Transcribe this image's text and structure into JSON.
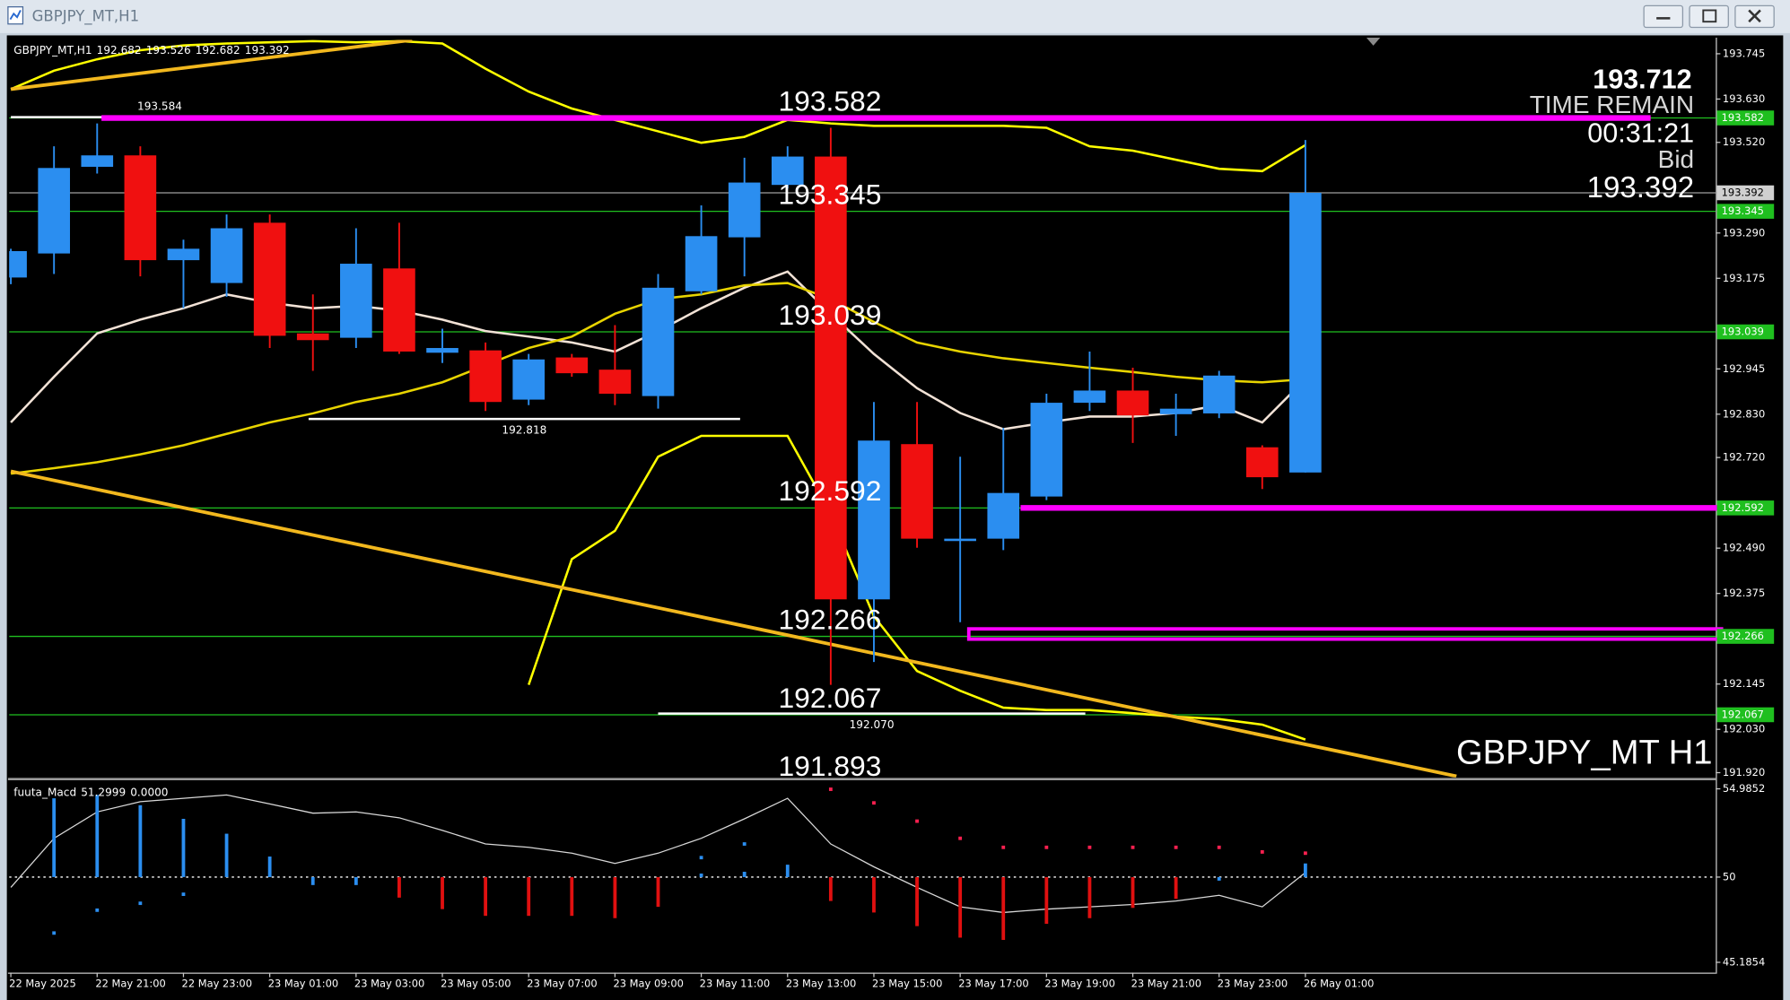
{
  "window": {
    "title": "GBPJPY_MT,H1"
  },
  "chart_data": [
    {
      "type": "candlestick",
      "symbol": "GBPJPY_MT,H1",
      "watermark": "GBPJPY_MT H1",
      "categories": [
        "22 May 2025",
        null,
        "22 May 21:00",
        null,
        "22 May 23:00",
        null,
        "23 May 01:00",
        null,
        "23 May 03:00",
        null,
        "23 May 05:00",
        null,
        "23 May 07:00",
        null,
        "23 May 09:00",
        null,
        "23 May 11:00",
        null,
        "23 May 13:00",
        null,
        "23 May 15:00",
        null,
        "23 May 17:00",
        null,
        "23 May 19:00",
        null,
        "23 May 21:00",
        null,
        "23 May 23:00",
        null,
        "26 May 01:00"
      ],
      "open": [
        193.177,
        193.238,
        193.458,
        193.487,
        193.221,
        193.163,
        193.316,
        193.035,
        193.024,
        193.2,
        192.986,
        192.992,
        192.867,
        192.974,
        192.943,
        192.876,
        193.142,
        193.279,
        193.412,
        193.484,
        192.36,
        192.754,
        192.508,
        192.514,
        192.621,
        192.859,
        192.89,
        192.83,
        192.832,
        192.746,
        192.682
      ],
      "high": [
        193.25,
        193.51,
        193.568,
        193.51,
        193.273,
        193.337,
        193.337,
        193.134,
        193.302,
        193.316,
        193.047,
        193.012,
        192.983,
        192.983,
        193.056,
        193.186,
        193.36,
        193.481,
        193.51,
        193.557,
        192.861,
        192.861,
        192.722,
        192.795,
        192.882,
        192.989,
        192.948,
        192.882,
        192.94,
        192.751,
        193.526
      ],
      "low": [
        193.16,
        193.186,
        193.441,
        193.18,
        193.099,
        193.128,
        192.998,
        192.94,
        192.998,
        192.983,
        192.96,
        192.838,
        192.853,
        192.925,
        192.853,
        192.844,
        193.134,
        193.18,
        193.403,
        192.143,
        192.201,
        192.491,
        192.302,
        192.485,
        192.612,
        192.838,
        192.757,
        192.775,
        192.82,
        192.64,
        192.682
      ],
      "close": [
        193.244,
        193.455,
        193.487,
        193.221,
        193.25,
        193.302,
        193.029,
        193.018,
        193.212,
        192.989,
        192.998,
        192.861,
        192.969,
        192.934,
        192.882,
        193.151,
        193.282,
        193.418,
        193.484,
        192.36,
        192.763,
        192.514,
        192.514,
        192.63,
        192.859,
        192.89,
        192.827,
        192.844,
        192.928,
        192.67,
        193.392
      ],
      "up_color": "#2b8ef0",
      "down_color": "#f01010",
      "lines": [
        {
          "color": "#f2e2d6",
          "values": [
            192.809,
            192.925,
            193.035,
            193.07,
            193.099,
            193.134,
            193.113,
            193.099,
            193.105,
            193.093,
            193.07,
            193.041,
            193.027,
            193.012,
            192.989,
            193.041,
            193.099,
            193.151,
            193.192,
            193.085,
            192.983,
            192.896,
            192.833,
            192.792,
            192.809,
            192.824,
            192.824,
            192.833,
            192.853,
            192.809,
            192.919
          ]
        },
        {
          "color": "#e8d400",
          "values": [
            192.679,
            192.693,
            192.708,
            192.728,
            192.751,
            192.78,
            192.809,
            192.832,
            192.861,
            192.882,
            192.911,
            192.954,
            192.998,
            193.027,
            193.085,
            193.122,
            193.134,
            193.157,
            193.163,
            193.122,
            193.064,
            193.012,
            192.989,
            192.972,
            192.96,
            192.948,
            192.937,
            192.925,
            192.916,
            192.911,
            192.919
          ]
        },
        {
          "color": "#ffff00",
          "values": [
            193.655,
            193.702,
            193.731,
            193.754,
            193.766,
            193.771,
            193.774,
            193.777,
            193.774,
            193.777,
            193.771,
            193.707,
            193.649,
            193.606,
            193.577,
            193.548,
            193.519,
            193.534,
            193.577,
            193.568,
            193.562,
            193.562,
            193.562,
            193.562,
            193.557,
            193.51,
            193.499,
            193.476,
            193.453,
            193.447,
            193.513
          ]
        },
        {
          "color": "#ffff00",
          "values": [
            null,
            null,
            null,
            null,
            null,
            null,
            null,
            null,
            null,
            null,
            null,
            null,
            192.143,
            192.462,
            192.534,
            192.722,
            192.775,
            192.775,
            192.775,
            192.578,
            192.317,
            192.178,
            192.128,
            192.085,
            192.079,
            192.079,
            192.071,
            192.062,
            192.056,
            192.042,
            192.004
          ]
        }
      ],
      "trendlines": [
        {
          "color": "#f2b81e",
          "start": [
            0,
            192.685
          ],
          "end": [
            33.5,
            191.911
          ]
        },
        {
          "color": "#f2b81e",
          "start": [
            0,
            193.655
          ],
          "end": [
            9.3,
            193.78
          ]
        }
      ],
      "levels": [
        193.582,
        193.345,
        193.039,
        192.592,
        192.266,
        192.067,
        191.893
      ],
      "level_color": "#1fbf1f",
      "zones": [
        {
          "value": 193.582,
          "start": 2.1,
          "end": 38
        },
        {
          "value": 192.592,
          "start": 23.4
        },
        {
          "low": 192.259,
          "high": 192.285,
          "start": 22.2
        }
      ],
      "zone_color": "#ff00ff",
      "marks": [
        {
          "value": 193.584,
          "start": 0,
          "end": 6.9
        },
        {
          "value": 192.818,
          "start": 6.9,
          "end": 16.9
        },
        {
          "value": {
            "value": 192.07,
            "label": "192.070"
          },
          "start": 15,
          "end": 24.9
        }
      ],
      "info": {
        "price": 193.712,
        "label": "TIME REMAIN",
        "timer": "00:31:21",
        "side": "Bid"
      },
      "ylim": [
        191.908,
        193.78
      ],
      "yticks": [
        193.745,
        {
          "value": 193.63,
          "label": "193.630"
        },
        {
          "value": 193.52,
          "label": "193.520"
        },
        {
          "value": 193.29,
          "label": "193.290"
        },
        193.175,
        192.945,
        {
          "value": 192.83,
          "label": "192.830"
        },
        {
          "value": 192.72,
          "label": "192.720"
        },
        {
          "value": 192.49,
          "label": "192.490"
        },
        192.375,
        192.145,
        {
          "value": 192.03,
          "label": "192.030"
        },
        {
          "value": 191.92,
          "label": "191.920"
        }
      ]
    },
    {
      "type": "macd",
      "title": "fuuta_Macd",
      "readout": [
        51.2999,
        {
          "value": 0,
          "label": "0.0000"
        }
      ],
      "ylim": [
        44.605,
        55.437
      ],
      "yticks": [
        54.9852,
        50,
        45.1854
      ],
      "series": [
        {
          "style": "line",
          "color": "#d8d8d8",
          "values": [
            49.42,
            52.19,
            53.68,
            54.26,
            54.45,
            54.64,
            54.13,
            53.61,
            53.68,
            53.35,
            52.64,
            51.87,
            51.68,
            51.35,
            50.77,
            51.35,
            52.19,
            53.29,
            54.45,
            51.87,
            50.58,
            49.42,
            48.32,
            48.0,
            48.19,
            48.32,
            48.45,
            48.65,
            48.97,
            48.32,
            50.26
          ]
        },
        {
          "style": "histogram",
          "color": "#2b8ef0",
          "values": [
            null,
            54.45,
            54.64,
            54.06,
            53.29,
            52.45,
            51.16,
            49.55,
            49.55,
            null,
            null,
            null,
            null,
            null,
            null,
            null,
            50.2,
            50.3,
            50.7,
            null,
            null,
            null,
            null,
            null,
            null,
            null,
            null,
            null,
            49.8,
            null,
            50.77
          ]
        },
        {
          "style": "histogram",
          "color": "#e01010",
          "values": [
            null,
            null,
            null,
            null,
            null,
            null,
            null,
            null,
            null,
            48.84,
            48.19,
            47.81,
            47.81,
            47.81,
            47.68,
            48.32,
            null,
            null,
            null,
            48.65,
            48.0,
            47.23,
            46.58,
            46.45,
            47.36,
            47.68,
            48.26,
            48.77,
            null,
            null,
            null
          ]
        },
        {
          "style": "dots",
          "color": "#2b8ef0",
          "values": [
            null,
            46.84,
            48.13,
            48.52,
            49.03,
            null,
            null,
            null,
            null,
            null,
            null,
            null,
            null,
            null,
            null,
            null,
            51.1,
            51.87,
            null,
            null,
            null,
            null,
            null,
            null,
            null,
            null,
            null,
            null,
            null,
            null,
            null
          ]
        },
        {
          "style": "dots",
          "color": "#ff2050",
          "values": [
            null,
            null,
            null,
            null,
            null,
            null,
            null,
            null,
            null,
            null,
            null,
            null,
            null,
            null,
            null,
            null,
            null,
            null,
            null,
            54.96,
            54.19,
            53.16,
            52.19,
            51.68,
            51.68,
            51.68,
            51.68,
            51.68,
            51.68,
            51.42,
            51.35
          ]
        }
      ]
    }
  ]
}
